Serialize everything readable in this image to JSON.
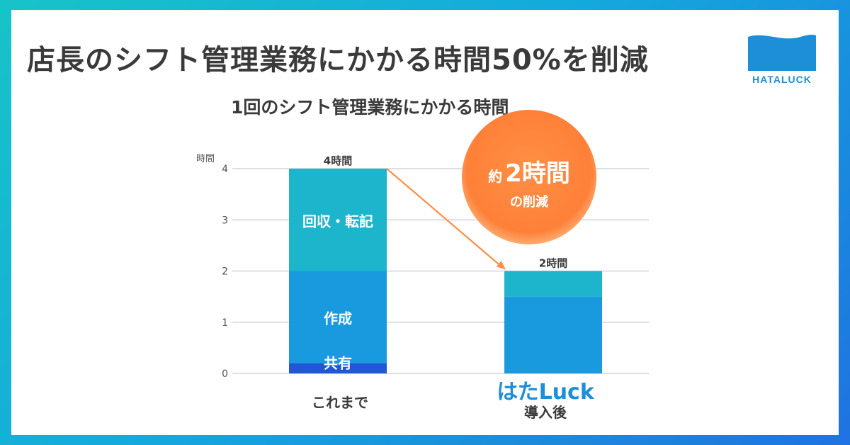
{
  "headline": "店長のシフト管理業務にかかる時間50%を削減",
  "logo": {
    "text": "HATALUCK"
  },
  "annotation": {
    "prefix": "約",
    "amount": "2時間",
    "suffix": "の削減"
  },
  "categories_display": {
    "left": "これまで",
    "right_brand": "はたLuck",
    "right_sub": "導入後"
  },
  "chart_data": {
    "type": "bar",
    "stacked": true,
    "title": "1回のシフト管理業務にかかる時間",
    "ylabel": "時間",
    "ylim": [
      0,
      4
    ],
    "yticks": [
      "0",
      "1",
      "2",
      "3",
      "4"
    ],
    "categories": [
      "これまで",
      "はたLuck導入後"
    ],
    "totals_labels": [
      "4時間",
      "2時間"
    ],
    "grid": true,
    "series": [
      {
        "name": "共有",
        "values": [
          0.2,
          0
        ],
        "color": "#1f57d6"
      },
      {
        "name": "作成",
        "values": [
          1.8,
          1.5
        ],
        "color": "#1a9ade"
      },
      {
        "name": "回収・転記",
        "values": [
          2.0,
          0.5
        ],
        "color": "#1cb5cc"
      }
    ],
    "arrow_color": "#ff8f45"
  }
}
